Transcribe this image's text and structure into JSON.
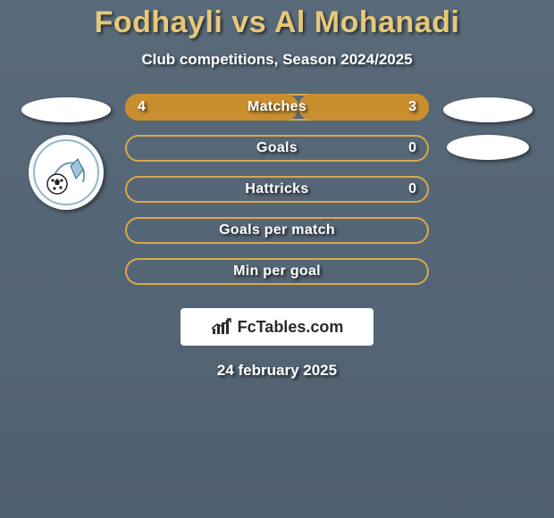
{
  "colors": {
    "bg_gradient_top": "#596a7a",
    "bg_gradient_bottom": "#4f6070",
    "title_color": "#e6c87a",
    "subtitle_color": "#ffffff",
    "bar_border": "#d9a84a",
    "bar_fill": "#c98f2f",
    "bar_text": "#ffffff",
    "flag_fill": "#ffffff",
    "brand_bg": "#ffffff",
    "brand_text": "#2a2a2a",
    "brand_icon": "#2a2a2a",
    "date_color": "#ffffff",
    "logo_ring": "#8fb8c9",
    "logo_inner": "#3a5a7a"
  },
  "title": "Fodhayli vs Al Mohanadi",
  "subtitle": "Club competitions, Season 2024/2025",
  "stats": [
    {
      "label": "Matches",
      "left_value": "4",
      "right_value": "3",
      "left_pct": 57,
      "right_pct": 43
    },
    {
      "label": "Goals",
      "left_value": "",
      "right_value": "0",
      "left_pct": 0,
      "right_pct": 0
    },
    {
      "label": "Hattricks",
      "left_value": "",
      "right_value": "0",
      "left_pct": 0,
      "right_pct": 0
    },
    {
      "label": "Goals per match",
      "left_value": "",
      "right_value": "",
      "left_pct": 0,
      "right_pct": 0
    },
    {
      "label": "Min per goal",
      "left_value": "",
      "right_value": "",
      "left_pct": 0,
      "right_pct": 0
    }
  ],
  "brand": "FcTables.com",
  "date": "24 february 2025",
  "left_side": {
    "has_flag": true,
    "has_club_logo": true
  },
  "right_side": {
    "has_flag_top": true,
    "has_flag_second": true
  }
}
